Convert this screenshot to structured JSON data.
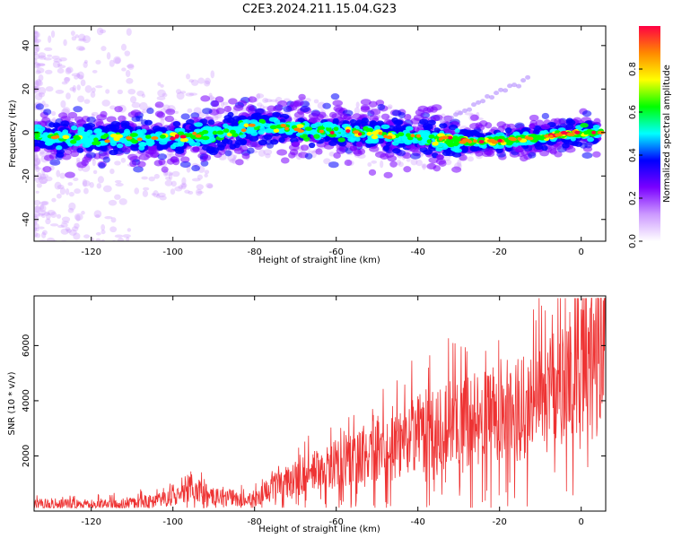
{
  "title": "C2E3.2024.211.15.04.G23",
  "chart_data": [
    {
      "type": "heatmap",
      "xlabel": "Height of straight line (km)",
      "ylabel": "Frequency (Hz)",
      "xlim": [
        -134,
        6
      ],
      "ylim": [
        -50,
        49
      ],
      "xticks": [
        -120,
        -100,
        -80,
        -60,
        -40,
        -20,
        0
      ],
      "yticks": [
        -40,
        -20,
        0,
        20,
        40
      ],
      "ridge_profile": {
        "x": [
          -134,
          -120,
          -100,
          -90,
          -80,
          -70,
          -60,
          -50,
          -40,
          -30,
          -20,
          -10,
          0,
          4
        ],
        "y": [
          -2,
          -3,
          -2,
          -1,
          3,
          2,
          0,
          -1,
          -2,
          -4,
          -4,
          -2,
          0,
          0
        ]
      },
      "colorbar": {
        "label": "Normalized spectral amplitude",
        "range": [
          0.0,
          1.0
        ],
        "ticks": [
          "0.0",
          "0.2",
          "0.4",
          "0.6",
          "0.8"
        ],
        "colormap": [
          "#ffffff",
          "#cc99ff",
          "#7a00ff",
          "#0000ff",
          "#00ffff",
          "#00ff00",
          "#ffff00",
          "#ff8800",
          "#ff0044"
        ]
      }
    },
    {
      "type": "line",
      "xlabel": "Height of straight line (km)",
      "ylabel": "SNR (10 * v/v)",
      "xlim": [
        -134,
        6
      ],
      "ylim": [
        0,
        7800
      ],
      "xticks": [
        -120,
        -100,
        -80,
        -60,
        -40,
        -20,
        0
      ],
      "yticks": [
        2000,
        4000,
        6000
      ],
      "color": "#ee3333",
      "trend": {
        "x": [
          -134,
          -120,
          -110,
          -100,
          -95,
          -90,
          -80,
          -75,
          -70,
          -60,
          -50,
          -40,
          -30,
          -20,
          -10,
          -5,
          0,
          6
        ],
        "y": [
          250,
          250,
          300,
          450,
          900,
          500,
          450,
          900,
          1200,
          1700,
          2200,
          2800,
          3200,
          3500,
          4000,
          4800,
          5800,
          5800
        ]
      }
    }
  ]
}
